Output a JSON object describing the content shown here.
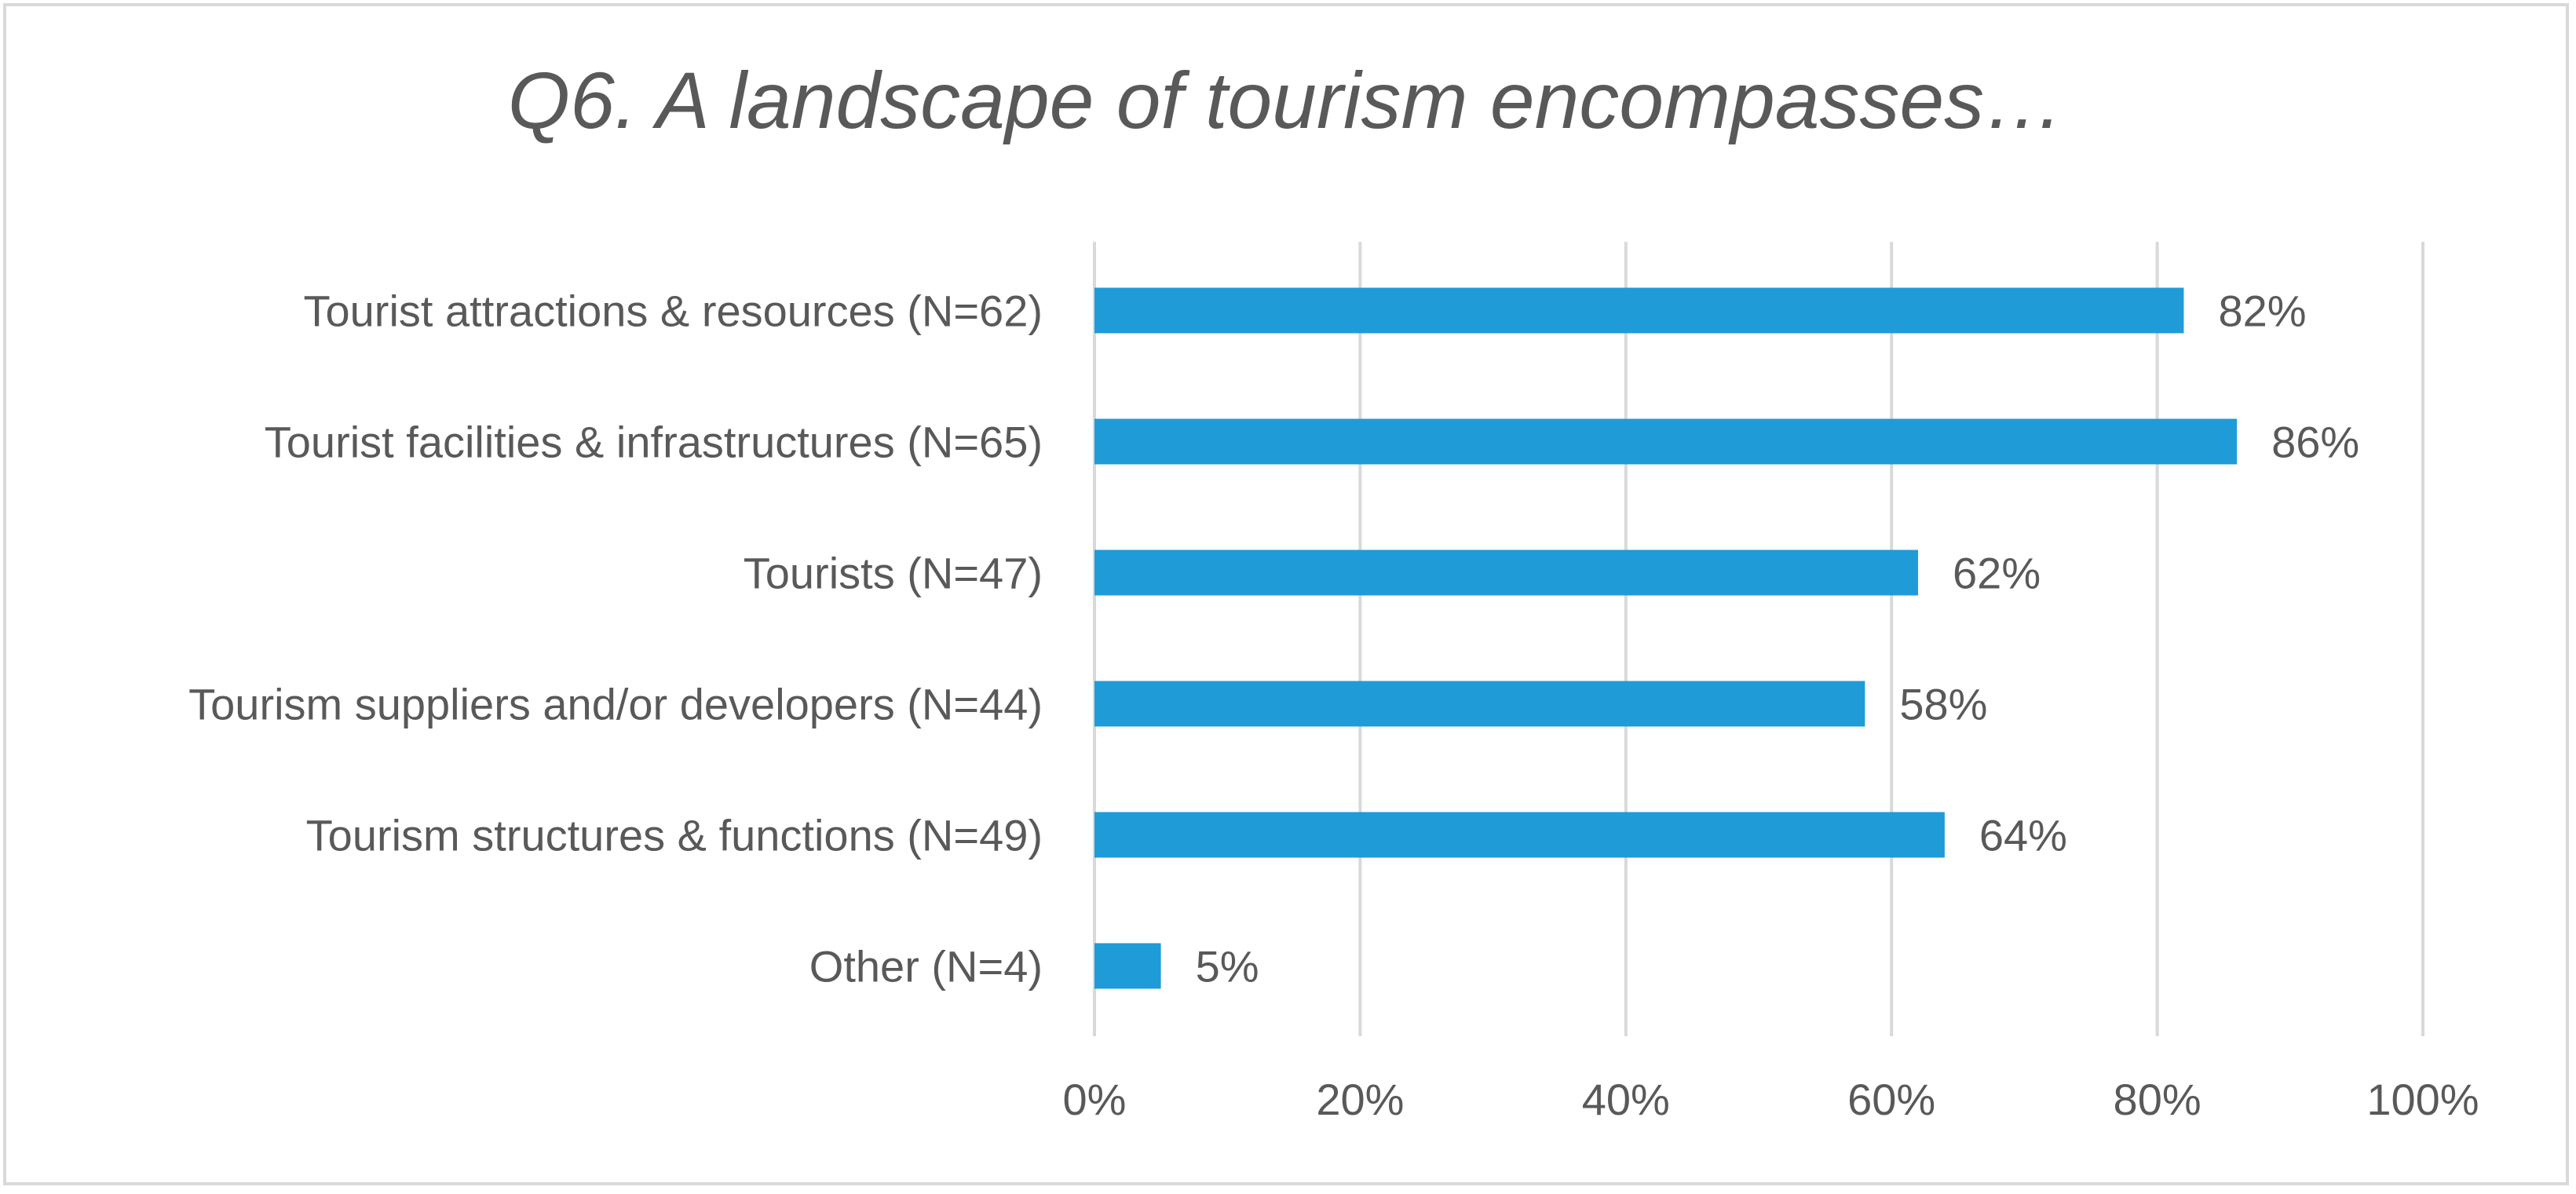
{
  "chart_data": {
    "type": "bar",
    "orientation": "horizontal",
    "title": "Q6. A landscape of tourism encompasses…",
    "categories": [
      "Tourist attractions & resources (N=62)",
      "Tourist facilities & infrastructures (N=65)",
      "Tourists (N=47)",
      "Tourism suppliers and/or developers (N=44)",
      "Tourism structures & functions (N=49)",
      "Other (N=4)"
    ],
    "values": [
      82,
      86,
      62,
      58,
      64,
      5
    ],
    "data_labels": [
      "82%",
      "86%",
      "62%",
      "58%",
      "64%",
      "5%"
    ],
    "xlim": [
      0,
      100
    ],
    "x_ticks": [
      0,
      20,
      40,
      60,
      80,
      100
    ],
    "x_tick_labels": [
      "0%",
      "20%",
      "40%",
      "60%",
      "80%",
      "100%"
    ],
    "xlabel": "",
    "ylabel": "",
    "grid": true,
    "legend": "none",
    "bar_color": "#1f9bd7",
    "grid_color": "#d9d9d9",
    "text_color": "#595959"
  }
}
